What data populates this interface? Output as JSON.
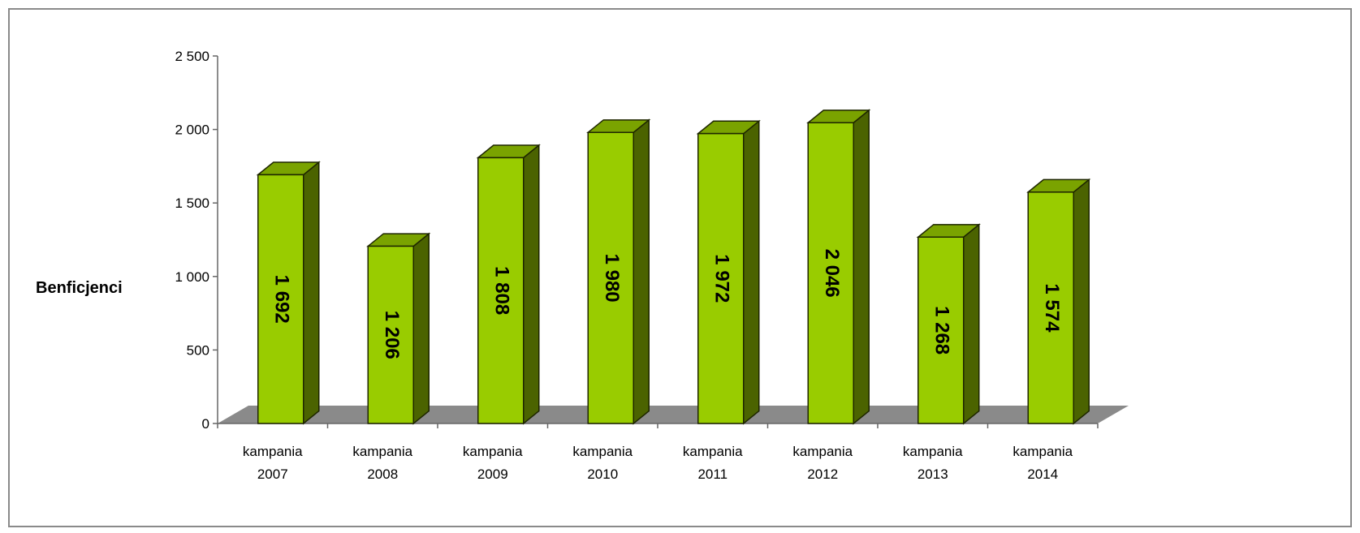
{
  "chart_data": {
    "type": "bar",
    "categories": [
      [
        "kampania",
        "2007"
      ],
      [
        "kampania",
        "2008"
      ],
      [
        "kampania",
        "2009"
      ],
      [
        "kampania",
        "2010"
      ],
      [
        "kampania",
        "2011"
      ],
      [
        "kampania",
        "2012"
      ],
      [
        "kampania",
        "2013"
      ],
      [
        "kampania",
        "2014"
      ]
    ],
    "values": [
      1692,
      1206,
      1808,
      1980,
      1972,
      2046,
      1268,
      1574
    ],
    "value_labels": [
      "1 692",
      "1 206",
      "1 808",
      "1 980",
      "1 972",
      "2 046",
      "1 268",
      "1 574"
    ],
    "ylabel": "Benficjenci",
    "ylim": [
      0,
      2500
    ],
    "yticks": [
      0,
      500,
      1000,
      1500,
      2000,
      2500
    ],
    "ytick_labels": [
      "0",
      "500",
      "1 000",
      "1 500",
      "2 000",
      "2 500"
    ],
    "grid": false,
    "legend": "none",
    "three_d": true,
    "colors": {
      "bar_front": "#99cc00",
      "bar_side": "#4b6300",
      "bar_top": "#7aa300",
      "floor": "#8a8a8a",
      "axis": "#666666"
    }
  }
}
